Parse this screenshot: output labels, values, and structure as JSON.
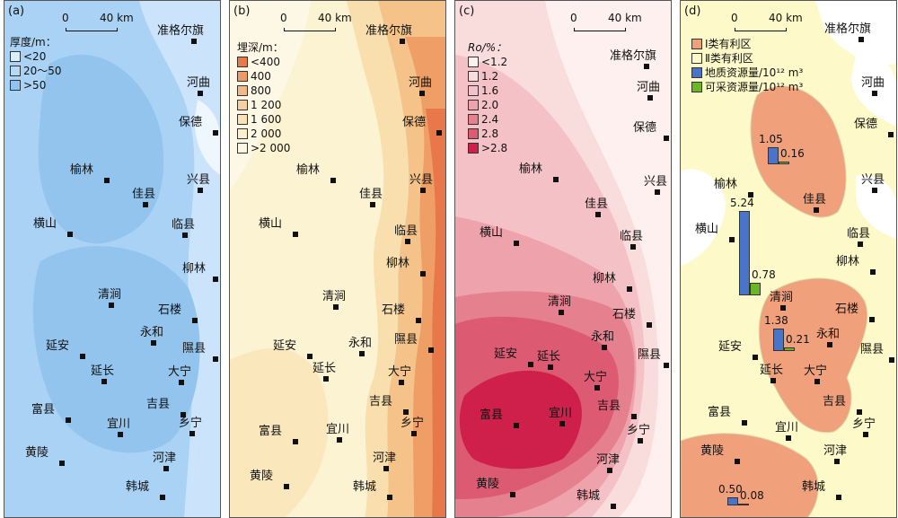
{
  "panels": [
    {
      "id": "a",
      "label": "(a)",
      "legend_title": "厚度/m：",
      "legend": [
        {
          "label": "<20",
          "color": "#dbeefc"
        },
        {
          "label": "20～50",
          "color": "#b8d9f6"
        },
        {
          "label": ">50",
          "color": "#8fc3f0"
        }
      ]
    },
    {
      "id": "b",
      "label": "(b)",
      "legend_title": "埋深/m：",
      "legend": [
        {
          "label": "<400",
          "color": "#e8794a"
        },
        {
          "label": "400",
          "color": "#ee9a68"
        },
        {
          "label": "800",
          "color": "#f3b887"
        },
        {
          "label": "1 200",
          "color": "#f7d09f"
        },
        {
          "label": "1 600",
          "color": "#f9e2b6"
        },
        {
          "label": "2 000",
          "color": "#fbf0cd"
        },
        {
          "label": ">2 000",
          "color": "#fdf8e3"
        }
      ]
    },
    {
      "id": "c",
      "label": "(c)",
      "legend_title": "Ro/%：",
      "legend": [
        {
          "label": "<1.2",
          "color": "#fdf0ee"
        },
        {
          "label": "1.2",
          "color": "#f9dcdc"
        },
        {
          "label": "1.6",
          "color": "#f4c2c6"
        },
        {
          "label": "2.0",
          "color": "#eea3ac"
        },
        {
          "label": "2.4",
          "color": "#e5808e"
        },
        {
          "label": "2.8",
          "color": "#dc5b72"
        },
        {
          "label": ">2.8",
          "color": "#cf1f4b"
        }
      ]
    },
    {
      "id": "d",
      "label": "(d)",
      "legend": [
        {
          "label": "Ⅰ类有利区",
          "color": "#f1a07c"
        },
        {
          "label": "Ⅱ类有利区",
          "color": "#fdf9c8"
        },
        {
          "label": "地质资源量/10¹² m³",
          "color": "#4a74c9"
        },
        {
          "label": "可采资源量/10¹² m³",
          "color": "#6cb526"
        }
      ]
    }
  ],
  "scale": {
    "zero": "0",
    "dist": "40 km"
  },
  "cities": [
    "准格尔旗",
    "河曲",
    "保德",
    "兴县",
    "榆林",
    "佳县",
    "横山",
    "临县",
    "柳林",
    "清涧",
    "石楼",
    "永和",
    "延安",
    "延长",
    "隰县",
    "大宁",
    "富县",
    "宜川",
    "吉县",
    "乡宁",
    "黄陵",
    "河津",
    "韩城"
  ],
  "resources": [
    {
      "geo": 1.05,
      "rec": 0.16
    },
    {
      "geo": 5.24,
      "rec": 0.78
    },
    {
      "geo": 1.38,
      "rec": 0.21
    },
    {
      "geo": 0.5,
      "rec": 0.08
    }
  ]
}
